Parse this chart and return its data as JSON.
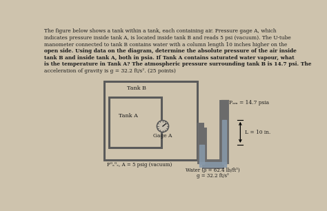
{
  "bg_color": "#cec3ad",
  "text_color": "#1a1a1a",
  "title_lines": [
    [
      "normal",
      "The figure below shows a tank within a tank, each containing air. Pressure gage A, which"
    ],
    [
      "normal",
      "indicates pressure inside tank A, is located inside tank B and reads 5 psi (vacuum). The U-tube"
    ],
    [
      "normal",
      "manometer connected to tank B contains water with a column length 10 inches higher on the"
    ],
    [
      "bold",
      "open side. Using data on the diagram, determine the absolute pressure of the air inside"
    ],
    [
      "bold",
      "tank B and inside tank A, both in psia. If Tank A contains saturated water vapour, what"
    ],
    [
      "bold",
      "is the temperature in Tank A?"
    ],
    [
      "normal",
      " The atmospheric pressure surrounding tank B is 14.7 psi. The"
    ],
    [
      "normal",
      "acceleration of gravity is g = 32.2 ft/s². (25 points)"
    ]
  ],
  "tank_b_label": "Tank B",
  "tank_a_label": "Tank A",
  "gage_label": "Gage A",
  "patm_label": "Pₐₘ = 14.7 psia",
  "L_label": "L = 10 in.",
  "pgage_a_label": "Pᴳₐᴳₑ, A = 5 psig (vacuum)",
  "water_label_line1": "Water (ρ = 62.4 lb/ft³)",
  "water_label_line2": "g = 32.2 ft/s²",
  "pipe_color": "#6b6b6b",
  "tank_color": "#5a5a5a",
  "water_color": "#8899aa"
}
